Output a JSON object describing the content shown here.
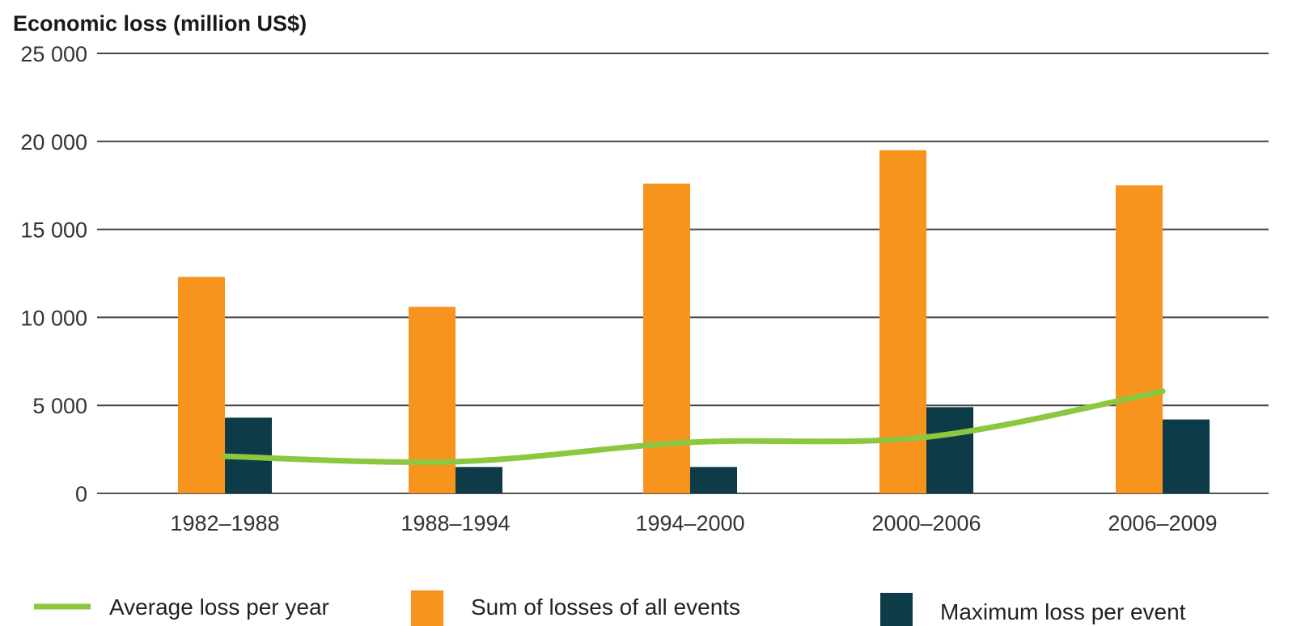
{
  "chart_data": {
    "type": "bar",
    "title": "",
    "ylabel": "Economic loss (million US$)",
    "xlabel": "",
    "ylim": [
      0,
      25000
    ],
    "yticks": [
      0,
      5000,
      10000,
      15000,
      20000,
      25000
    ],
    "ytick_labels": [
      "0",
      "5 000",
      "10 000",
      "15 000",
      "20 000",
      "25 000"
    ],
    "grid": true,
    "categories": [
      "1982–1988",
      "1988–1994",
      "1994–2000",
      "2000–2006",
      "2006–2009"
    ],
    "series": [
      {
        "name": "Sum of losses of all events",
        "kind": "bar",
        "color": "#f7941d",
        "values": [
          12300,
          10600,
          17600,
          19500,
          17500
        ]
      },
      {
        "name": "Maximum loss per event",
        "kind": "bar",
        "color": "#0d3b47",
        "values": [
          4300,
          1500,
          1500,
          4900,
          4200
        ]
      },
      {
        "name": "Average loss per year",
        "kind": "line",
        "color": "#8dc63f",
        "values": [
          2100,
          1800,
          2900,
          3200,
          5800
        ]
      }
    ],
    "legend_position": "bottom",
    "legend": [
      "Average loss per year",
      "Sum of losses of all events",
      "Maximum loss per event"
    ]
  }
}
